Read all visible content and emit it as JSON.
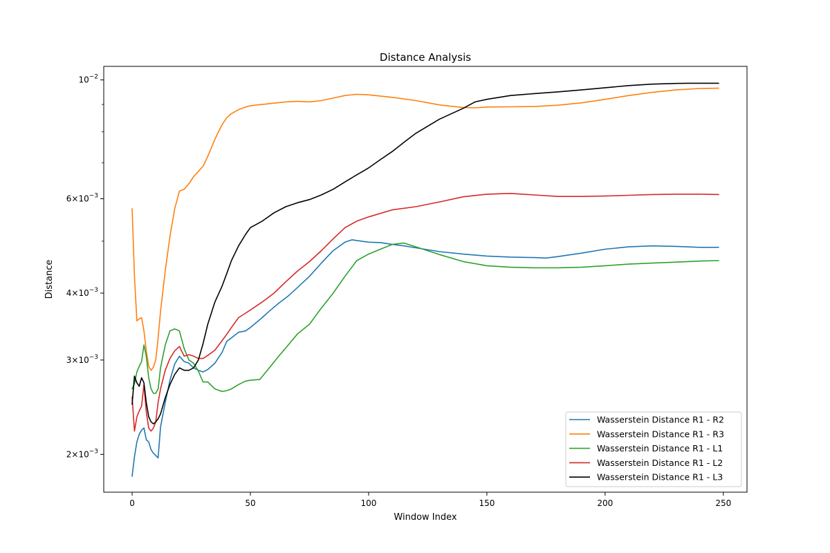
{
  "chart_data": {
    "type": "line",
    "title": "Distance Analysis",
    "xlabel": "Window Index",
    "ylabel": "Distance",
    "yscale": "log",
    "xlim": [
      -12,
      260
    ],
    "ylim": [
      0.0017,
      0.0106
    ],
    "xticks": [
      0,
      50,
      100,
      150,
      200,
      250
    ],
    "xtick_labels": [
      "0",
      "50",
      "100",
      "150",
      "200",
      "250"
    ],
    "yticks": [
      {
        "value": 0.002,
        "base": "2",
        "times": "×10",
        "exp": "−3"
      },
      {
        "value": 0.003,
        "base": "3",
        "times": "×10",
        "exp": "−3"
      },
      {
        "value": 0.004,
        "base": "4",
        "times": "×10",
        "exp": "−3"
      },
      {
        "value": 0.006,
        "base": "6",
        "times": "×10",
        "exp": "−3"
      },
      {
        "value": 0.01,
        "base": "",
        "times": "10",
        "exp": "−2"
      }
    ],
    "minor_yticks": [
      0.005,
      0.007,
      0.008,
      0.009
    ],
    "grid": false,
    "legend_position": "lower-right",
    "series": [
      {
        "name": "Wasserstein Distance R1 - R2",
        "color": "#1f77b4",
        "x": [
          0,
          1,
          2,
          3,
          4,
          5,
          6,
          7,
          8,
          9,
          10,
          11,
          12,
          14,
          16,
          18,
          20,
          22,
          24,
          26,
          28,
          30,
          32,
          35,
          38,
          40,
          42,
          45,
          48,
          50,
          55,
          58,
          62,
          66,
          70,
          75,
          80,
          85,
          90,
          93,
          97,
          100,
          105,
          110,
          115,
          120,
          130,
          140,
          150,
          160,
          170,
          175,
          180,
          190,
          200,
          210,
          220,
          230,
          240,
          248
        ],
        "y": [
          0.00182,
          0.00198,
          0.00211,
          0.00218,
          0.00222,
          0.00224,
          0.00213,
          0.00211,
          0.00204,
          0.00201,
          0.00199,
          0.00197,
          0.00225,
          0.0025,
          0.00275,
          0.00295,
          0.00305,
          0.00298,
          0.00296,
          0.0029,
          0.00287,
          0.00285,
          0.00288,
          0.00296,
          0.0031,
          0.00325,
          0.0033,
          0.00338,
          0.0034,
          0.00345,
          0.0036,
          0.0037,
          0.00383,
          0.00395,
          0.0041,
          0.0043,
          0.00455,
          0.0048,
          0.00498,
          0.00503,
          0.005,
          0.00498,
          0.00497,
          0.00493,
          0.0049,
          0.00486,
          0.00478,
          0.00473,
          0.00469,
          0.00467,
          0.00466,
          0.00465,
          0.00468,
          0.00475,
          0.00483,
          0.00488,
          0.0049,
          0.00489,
          0.00487,
          0.00487
        ]
      },
      {
        "name": "Wasserstein Distance R1 - R3",
        "color": "#ff7f0e",
        "x": [
          0,
          1,
          2,
          3,
          4,
          5,
          6,
          7,
          8,
          9,
          10,
          11,
          12,
          14,
          16,
          18,
          20,
          22,
          24,
          26,
          28,
          30,
          32,
          35,
          38,
          40,
          42,
          45,
          48,
          50,
          55,
          60,
          65,
          70,
          75,
          80,
          85,
          90,
          95,
          100,
          110,
          120,
          130,
          140,
          145,
          150,
          160,
          170,
          180,
          190,
          200,
          210,
          220,
          230,
          240,
          248
        ],
        "y": [
          0.00575,
          0.0043,
          0.00355,
          0.00358,
          0.0036,
          0.0034,
          0.00312,
          0.00292,
          0.00287,
          0.00291,
          0.003,
          0.0033,
          0.0037,
          0.0044,
          0.0051,
          0.00575,
          0.0062,
          0.00625,
          0.0064,
          0.0066,
          0.00675,
          0.0069,
          0.0072,
          0.00775,
          0.00825,
          0.0085,
          0.00865,
          0.0088,
          0.0089,
          0.00895,
          0.009,
          0.00905,
          0.0091,
          0.00912,
          0.0091,
          0.00915,
          0.00925,
          0.00935,
          0.0094,
          0.00938,
          0.00928,
          0.00915,
          0.00898,
          0.00888,
          0.00887,
          0.0089,
          0.00891,
          0.00892,
          0.00897,
          0.00906,
          0.0092,
          0.00935,
          0.00948,
          0.00958,
          0.00964,
          0.00965
        ]
      },
      {
        "name": "Wasserstein Distance R1 - L1",
        "color": "#2ca02c",
        "x": [
          0,
          1,
          2,
          3,
          4,
          5,
          6,
          7,
          8,
          9,
          10,
          11,
          12,
          14,
          16,
          18,
          20,
          22,
          24,
          26,
          28,
          30,
          32,
          35,
          38,
          40,
          42,
          45,
          48,
          50,
          54,
          58,
          62,
          66,
          70,
          75,
          80,
          85,
          90,
          95,
          100,
          105,
          110,
          115,
          120,
          130,
          140,
          150,
          160,
          170,
          180,
          190,
          200,
          210,
          220,
          230,
          240,
          248
        ],
        "y": [
          0.00265,
          0.00271,
          0.00285,
          0.00292,
          0.00298,
          0.0032,
          0.00305,
          0.00278,
          0.00265,
          0.0026,
          0.0026,
          0.00265,
          0.0029,
          0.0032,
          0.0034,
          0.00343,
          0.0034,
          0.00315,
          0.003,
          0.00296,
          0.00286,
          0.00273,
          0.00273,
          0.00265,
          0.00262,
          0.00263,
          0.00265,
          0.0027,
          0.00274,
          0.00275,
          0.00276,
          0.0029,
          0.00305,
          0.0032,
          0.00336,
          0.0035,
          0.00375,
          0.004,
          0.0043,
          0.0046,
          0.00473,
          0.00483,
          0.00493,
          0.00496,
          0.00488,
          0.00472,
          0.00458,
          0.0045,
          0.00447,
          0.00446,
          0.00446,
          0.00447,
          0.0045,
          0.00453,
          0.00455,
          0.00457,
          0.00459,
          0.0046
        ]
      },
      {
        "name": "Wasserstein Distance R1 - L2",
        "color": "#d62728",
        "x": [
          0,
          1,
          2,
          3,
          4,
          5,
          6,
          7,
          8,
          9,
          10,
          11,
          12,
          14,
          16,
          18,
          20,
          22,
          24,
          26,
          28,
          30,
          32,
          35,
          38,
          40,
          42,
          45,
          48,
          50,
          55,
          60,
          65,
          70,
          75,
          80,
          85,
          90,
          95,
          100,
          110,
          120,
          130,
          140,
          150,
          160,
          170,
          180,
          190,
          200,
          210,
          220,
          230,
          240,
          248
        ],
        "y": [
          0.00256,
          0.00221,
          0.00235,
          0.00241,
          0.00246,
          0.0027,
          0.0024,
          0.00224,
          0.00221,
          0.00224,
          0.0023,
          0.0025,
          0.00265,
          0.00287,
          0.00302,
          0.00312,
          0.00318,
          0.00305,
          0.00307,
          0.00305,
          0.00302,
          0.00302,
          0.00306,
          0.00313,
          0.00326,
          0.00335,
          0.00345,
          0.0036,
          0.00367,
          0.00372,
          0.00385,
          0.004,
          0.0042,
          0.0044,
          0.00458,
          0.0048,
          0.00505,
          0.0053,
          0.00545,
          0.00555,
          0.00572,
          0.0058,
          0.00592,
          0.00605,
          0.00612,
          0.00614,
          0.0061,
          0.00606,
          0.00606,
          0.00607,
          0.00609,
          0.00611,
          0.00612,
          0.00612,
          0.00611
        ]
      },
      {
        "name": "Wasserstein Distance R1 - L3",
        "color": "#000000",
        "x": [
          0,
          1,
          2,
          3,
          4,
          5,
          6,
          7,
          8,
          9,
          10,
          11,
          12,
          14,
          16,
          18,
          20,
          22,
          24,
          26,
          28,
          30,
          32,
          35,
          38,
          40,
          42,
          45,
          48,
          50,
          55,
          60,
          65,
          70,
          75,
          80,
          85,
          90,
          95,
          100,
          105,
          110,
          115,
          120,
          130,
          140,
          145,
          150,
          160,
          170,
          180,
          190,
          200,
          210,
          220,
          230,
          235,
          240,
          248
        ],
        "y": [
          0.00248,
          0.0028,
          0.00272,
          0.00268,
          0.00278,
          0.00272,
          0.0025,
          0.00235,
          0.0023,
          0.00228,
          0.0023,
          0.00233,
          0.00238,
          0.00255,
          0.0027,
          0.00282,
          0.0029,
          0.00287,
          0.00287,
          0.0029,
          0.003,
          0.00322,
          0.0035,
          0.00385,
          0.00412,
          0.00435,
          0.0046,
          0.0049,
          0.00515,
          0.0053,
          0.00545,
          0.00565,
          0.0058,
          0.0059,
          0.00598,
          0.0061,
          0.00625,
          0.00645,
          0.00665,
          0.00685,
          0.0071,
          0.00735,
          0.00765,
          0.00795,
          0.00845,
          0.00885,
          0.0091,
          0.0092,
          0.00935,
          0.00943,
          0.0095,
          0.00958,
          0.00967,
          0.00976,
          0.00982,
          0.00985,
          0.00986,
          0.00986,
          0.00986
        ]
      }
    ]
  }
}
